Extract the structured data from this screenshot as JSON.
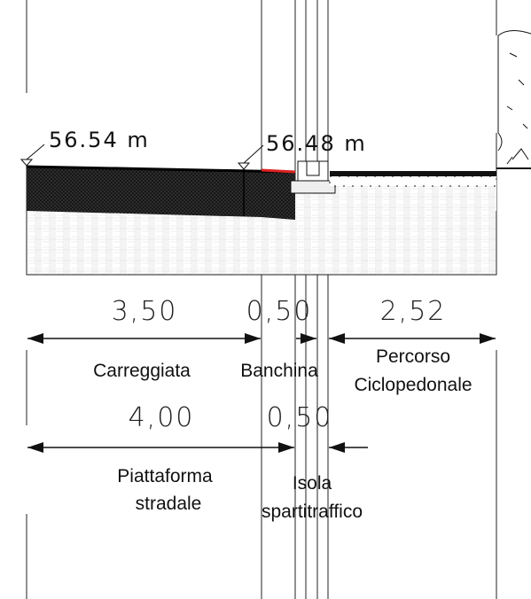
{
  "elevations": [
    "56.54  m",
    "56.48  m"
  ],
  "dimensions": {
    "row1": [
      "3,50",
      "0,50",
      "2,52"
    ],
    "row2": [
      "4,00",
      "0,50"
    ]
  },
  "labels": {
    "row1": [
      {
        "lines": [
          "Carreggiata"
        ]
      },
      {
        "lines": [
          "Banchina"
        ]
      },
      {
        "lines": [
          "Percorso",
          "Ciclopedonale"
        ]
      }
    ],
    "row2": [
      {
        "lines": [
          "Piattaforma",
          "stradale"
        ]
      },
      {
        "lines": [
          "Isola",
          "spartitraffico"
        ]
      }
    ]
  }
}
